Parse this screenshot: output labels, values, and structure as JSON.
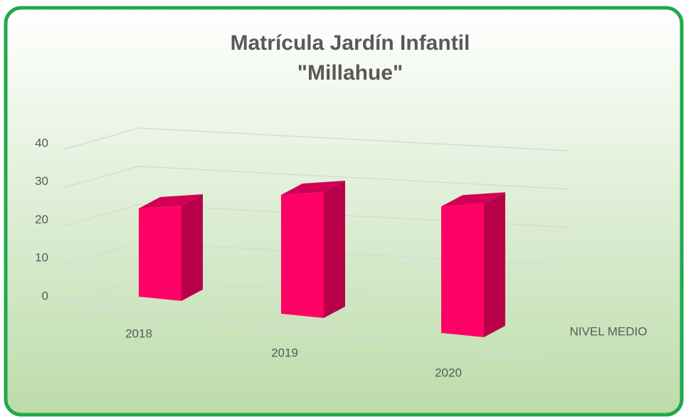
{
  "chart_data": {
    "type": "bar3d",
    "title": [
      "Matrícula Jardín Infantil",
      "\"Millahue\""
    ],
    "categories": [
      "2018",
      "2019",
      "2020"
    ],
    "series": [
      {
        "name": "NIVEL MEDIO",
        "color": "#ff0066",
        "values": [
          24,
          32,
          34
        ]
      }
    ],
    "ylim": [
      0,
      40
    ],
    "yticks": [
      0,
      10,
      20,
      30,
      40
    ],
    "grid": true
  }
}
